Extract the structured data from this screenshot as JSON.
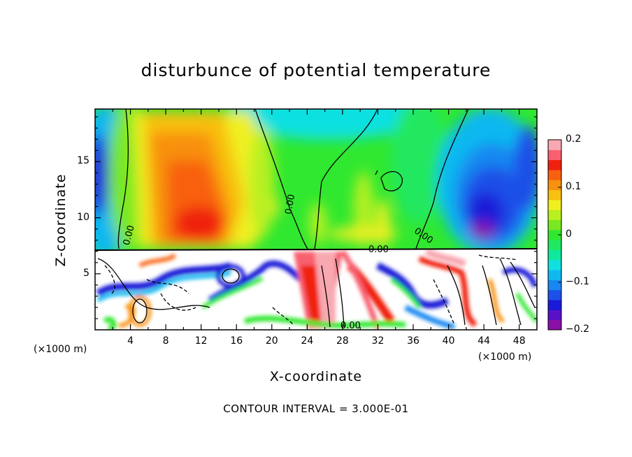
{
  "chart_data": {
    "type": "heatmap",
    "title": "disturbunce of potential temperature",
    "xlabel": "X-coordinate",
    "ylabel": "Z-coordinate",
    "x_unit": "(×1000 m)",
    "z_unit": "(×1000 m)",
    "x_ticks": [
      4,
      8,
      12,
      16,
      20,
      24,
      28,
      32,
      36,
      40,
      44,
      48
    ],
    "y_ticks": [
      5,
      10,
      15
    ],
    "xlim": [
      0,
      50
    ],
    "ylim": [
      0,
      19.7
    ],
    "colorbar": {
      "range": [
        -0.2,
        0.2
      ],
      "tick_values": [
        0.2,
        0.1,
        0,
        -0.1,
        -0.2
      ],
      "tick_labels": [
        "0.2",
        "0.1",
        "0",
        "−0.1",
        "−0.2"
      ],
      "colors": [
        "#8a10a8",
        "#5a10c8",
        "#1a1ad8",
        "#1c50e8",
        "#1888f0",
        "#10b8f0",
        "#10e0e0",
        "#10e8a0",
        "#20e860",
        "#30e830",
        "#78e820",
        "#b8f020",
        "#f0f020",
        "#f8c010",
        "#f89010",
        "#f86010",
        "#f02010",
        "#f86070",
        "#f8a8b0"
      ]
    },
    "contour_labels": [
      "0.00",
      "0.00",
      "0.00",
      "0.00",
      "0.00"
    ],
    "contour_interval": "CONTOUR INTERVAL = 3.000E-01"
  }
}
